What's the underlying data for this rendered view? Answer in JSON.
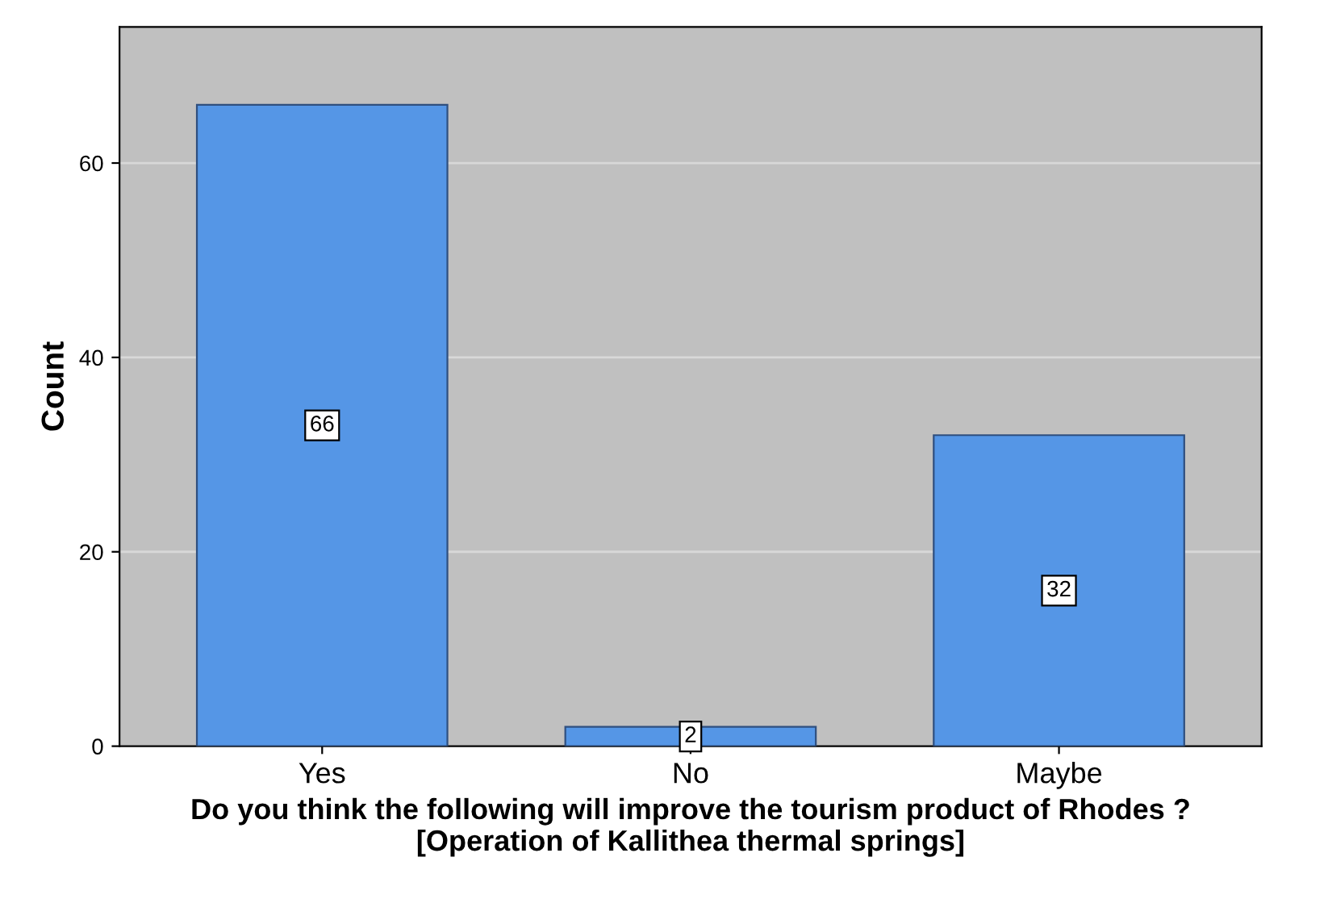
{
  "chart_data": {
    "type": "bar",
    "xlabel": "Do you think the following will improve the tourism product of Rhodes ?\n[Operation of Kallithea thermal springs]",
    "ylabel": "Count",
    "categories": [
      "Yes",
      "No",
      "Maybe"
    ],
    "values": [
      66,
      2,
      32
    ],
    "color": "#5596e6",
    "ylim": [
      0,
      74
    ],
    "yticks": [
      0,
      20,
      40,
      60
    ],
    "grid": "y",
    "data_labels": true
  }
}
